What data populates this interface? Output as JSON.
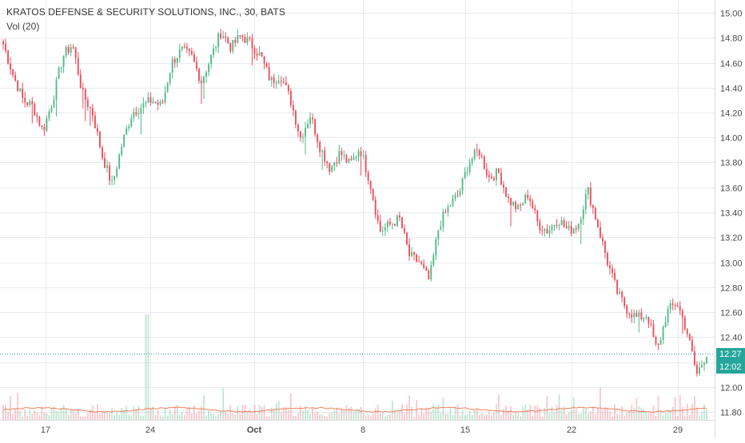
{
  "header": {
    "symbol_title": "KRATOS DEFENSE & SECURITY SOLUTIONS, INC., 30, BATS",
    "volume_label": "Vol (20)"
  },
  "price_tags": {
    "last_price": "12.27",
    "countdown": "12:02"
  },
  "colors": {
    "up": "#53b987",
    "down": "#eb4d5c",
    "grid": "#e7ebf0",
    "last_price_line": "#26a69a",
    "price_tag_bg": "#26a69a",
    "vol_ma": "#f0825a"
  },
  "chart_data": {
    "type": "candlestick",
    "title": "KRATOS DEFENSE & SECURITY SOLUTIONS, INC., 30, BATS",
    "interval": "30",
    "y_axis": {
      "position": "right",
      "ylim": [
        11.72,
        15.06
      ],
      "ticks": [
        "15.00",
        "14.80",
        "14.60",
        "14.40",
        "14.20",
        "14.00",
        "13.80",
        "13.60",
        "13.40",
        "13.20",
        "13.00",
        "12.80",
        "12.60",
        "12.40",
        "12.20",
        "12.00",
        "11.80"
      ]
    },
    "x_axis": {
      "tick_labels": [
        "17",
        "24",
        "Oct",
        "8",
        "15",
        "22",
        "29"
      ]
    },
    "last_price": 12.27,
    "grid": true,
    "volume_indicator": {
      "name": "Vol (20)",
      "has_moving_average": true
    },
    "close_path": [
      [
        "Sep 14",
        14.75
      ],
      [
        "Sep 14",
        14.5
      ],
      [
        "Sep 14",
        14.3
      ],
      [
        "Sep 17",
        14.25
      ],
      [
        "Sep 17",
        14.05
      ],
      [
        "Sep 17",
        14.3
      ],
      [
        "Sep 18",
        14.65
      ],
      [
        "Sep 19",
        14.75
      ],
      [
        "Sep 19",
        14.35
      ],
      [
        "Sep 20",
        14.2
      ],
      [
        "Sep 20",
        13.85
      ],
      [
        "Sep 21",
        13.62
      ],
      [
        "Sep 21",
        13.95
      ],
      [
        "Sep 21",
        14.2
      ],
      [
        "Sep 24",
        14.25
      ],
      [
        "Sep 24",
        14.3
      ],
      [
        "Sep 25",
        14.25
      ],
      [
        "Sep 25",
        14.6
      ],
      [
        "Sep 26",
        14.7
      ],
      [
        "Sep 26",
        14.65
      ],
      [
        "Sep 27",
        14.45
      ],
      [
        "Sep 27",
        14.65
      ],
      [
        "Sep 28",
        14.85
      ],
      [
        "Sep 28",
        14.72
      ],
      [
        "Oct 1",
        14.82
      ],
      [
        "Oct 2",
        14.75
      ],
      [
        "Oct 2",
        14.65
      ],
      [
        "Oct 3",
        14.45
      ],
      [
        "Oct 3",
        14.5
      ],
      [
        "Oct 4",
        14.3
      ],
      [
        "Oct 4",
        14.0
      ],
      [
        "Oct 5",
        14.18
      ],
      [
        "Oct 5",
        13.92
      ],
      [
        "Oct 8",
        13.75
      ],
      [
        "Oct 8",
        13.88
      ],
      [
        "Oct 9",
        13.78
      ],
      [
        "Oct 9",
        13.92
      ],
      [
        "Oct 10",
        13.65
      ],
      [
        "Oct 10",
        13.25
      ],
      [
        "Oct 11",
        13.3
      ],
      [
        "Oct 11",
        13.35
      ],
      [
        "Oct 12",
        13.05
      ],
      [
        "Oct 12",
        13.0
      ],
      [
        "Oct 15",
        12.85
      ],
      [
        "Oct 15",
        13.3
      ],
      [
        "Oct 16",
        13.45
      ],
      [
        "Oct 16",
        13.55
      ],
      [
        "Oct 17",
        13.8
      ],
      [
        "Oct 17",
        13.9
      ],
      [
        "Oct 18",
        13.68
      ],
      [
        "Oct 18",
        13.72
      ],
      [
        "Oct 19",
        13.5
      ],
      [
        "Oct 19",
        13.42
      ],
      [
        "Oct 22",
        13.55
      ],
      [
        "Oct 22",
        13.3
      ],
      [
        "Oct 23",
        13.25
      ],
      [
        "Oct 23",
        13.35
      ],
      [
        "Oct 24",
        13.25
      ],
      [
        "Oct 24",
        13.3
      ],
      [
        "Oct 25",
        13.58
      ],
      [
        "Oct 25",
        13.3
      ],
      [
        "Oct 26",
        13.0
      ],
      [
        "Oct 26",
        12.75
      ],
      [
        "Oct 29",
        12.62
      ],
      [
        "Oct 29",
        12.55
      ],
      [
        "Oct 29",
        12.58
      ],
      [
        "Oct 30",
        12.28
      ],
      [
        "Oct 30",
        12.6
      ],
      [
        "Oct 31",
        12.68
      ],
      [
        "Oct 31",
        12.45
      ],
      [
        "Nov 1",
        12.1
      ],
      [
        "Nov 1",
        12.27
      ]
    ]
  }
}
